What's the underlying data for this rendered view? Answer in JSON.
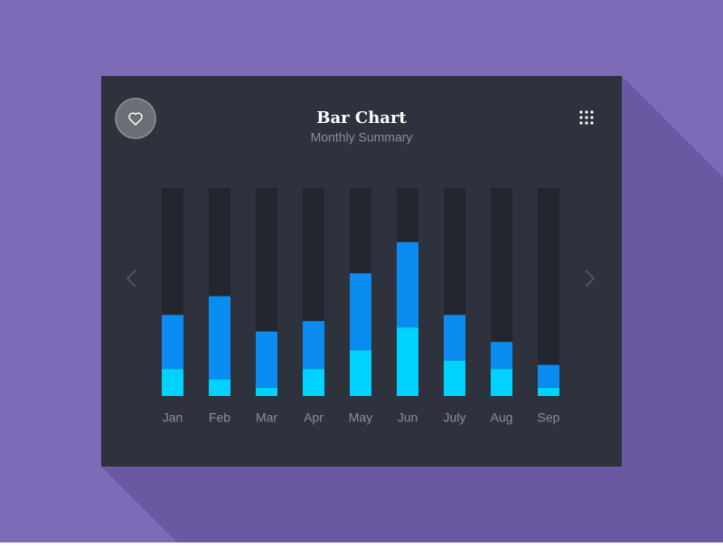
{
  "chart_data": {
    "type": "stacked-bar",
    "title": "Bar Chart",
    "subtitle": "Monthly Summary",
    "categories": [
      "Jan",
      "Feb",
      "Mar",
      "Apr",
      "May",
      "Jun",
      "July",
      "Aug",
      "Sep"
    ],
    "series": [
      {
        "color": "#00d2ff",
        "values": [
          13,
          8,
          4,
          13,
          22,
          33,
          17,
          13,
          4
        ]
      },
      {
        "color": "#0a8cf0",
        "values": [
          26,
          40,
          27,
          23,
          37,
          41,
          22,
          13,
          11
        ]
      }
    ],
    "ylim": [
      0,
      100
    ]
  }
}
